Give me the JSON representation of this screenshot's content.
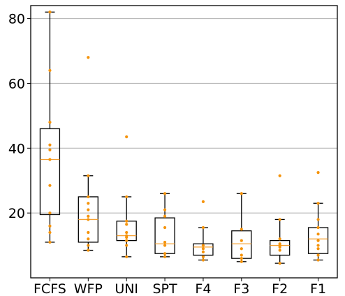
{
  "chart_data": {
    "type": "box",
    "title": "",
    "xlabel": "",
    "ylabel": "",
    "ylim": [
      0,
      84
    ],
    "yticks": [
      20,
      40,
      60,
      80
    ],
    "grid": "horizontal",
    "colors": {
      "box": "#000000",
      "median": "#f5a033",
      "points": "#f5930a",
      "grid": "#b0b0b0"
    },
    "categories": [
      "FCFS",
      "WFP",
      "UNI",
      "SPT",
      "F4",
      "F3",
      "F2",
      "F1"
    ],
    "boxes": [
      {
        "name": "FCFS",
        "whisker_low": 11,
        "q1": 19.5,
        "median": 36.5,
        "q3": 46,
        "whisker_high": 82,
        "points": [
          11,
          14,
          16,
          20,
          28.5,
          36.5,
          39.5,
          41,
          48,
          64,
          82
        ]
      },
      {
        "name": "WFP",
        "whisker_low": 8.5,
        "q1": 11,
        "median": 18,
        "q3": 25,
        "whisker_high": 31.5,
        "points": [
          8.5,
          10,
          12,
          14,
          18,
          19,
          21,
          23,
          25,
          31.5,
          68
        ]
      },
      {
        "name": "UNI",
        "whisker_low": 6.5,
        "q1": 11.5,
        "median": 13,
        "q3": 17.5,
        "whisker_high": 25,
        "points": [
          6.5,
          10,
          11.5,
          12.5,
          13,
          14,
          16.5,
          17.5,
          25,
          43.5
        ]
      },
      {
        "name": "SPT",
        "whisker_low": 6.5,
        "q1": 7.5,
        "median": 10.5,
        "q3": 18.5,
        "whisker_high": 26,
        "points": [
          6.5,
          7.5,
          10,
          11,
          15.5,
          19,
          21,
          26
        ]
      },
      {
        "name": "F4",
        "whisker_low": 5.5,
        "q1": 7,
        "median": 9.5,
        "q3": 10.5,
        "whisker_high": 15.5,
        "points": [
          5.5,
          6.5,
          8,
          9,
          10,
          15.5,
          23.5
        ]
      },
      {
        "name": "F3",
        "whisker_low": 5,
        "q1": 6,
        "median": 10.5,
        "q3": 14.5,
        "whisker_high": 26,
        "points": [
          5,
          6,
          7,
          9,
          11.5,
          15,
          26
        ]
      },
      {
        "name": "F2",
        "whisker_low": 4.5,
        "q1": 7,
        "median": 10,
        "q3": 11.5,
        "whisker_high": 18,
        "points": [
          4.5,
          8.5,
          9.5,
          10,
          10.5,
          12,
          18,
          31.5
        ]
      },
      {
        "name": "F1",
        "whisker_low": 5.5,
        "q1": 7.5,
        "median": 12,
        "q3": 15.5,
        "whisker_high": 23,
        "points": [
          5.5,
          7,
          9,
          10,
          11.5,
          13.5,
          15.5,
          18,
          23,
          32.5
        ]
      }
    ]
  }
}
